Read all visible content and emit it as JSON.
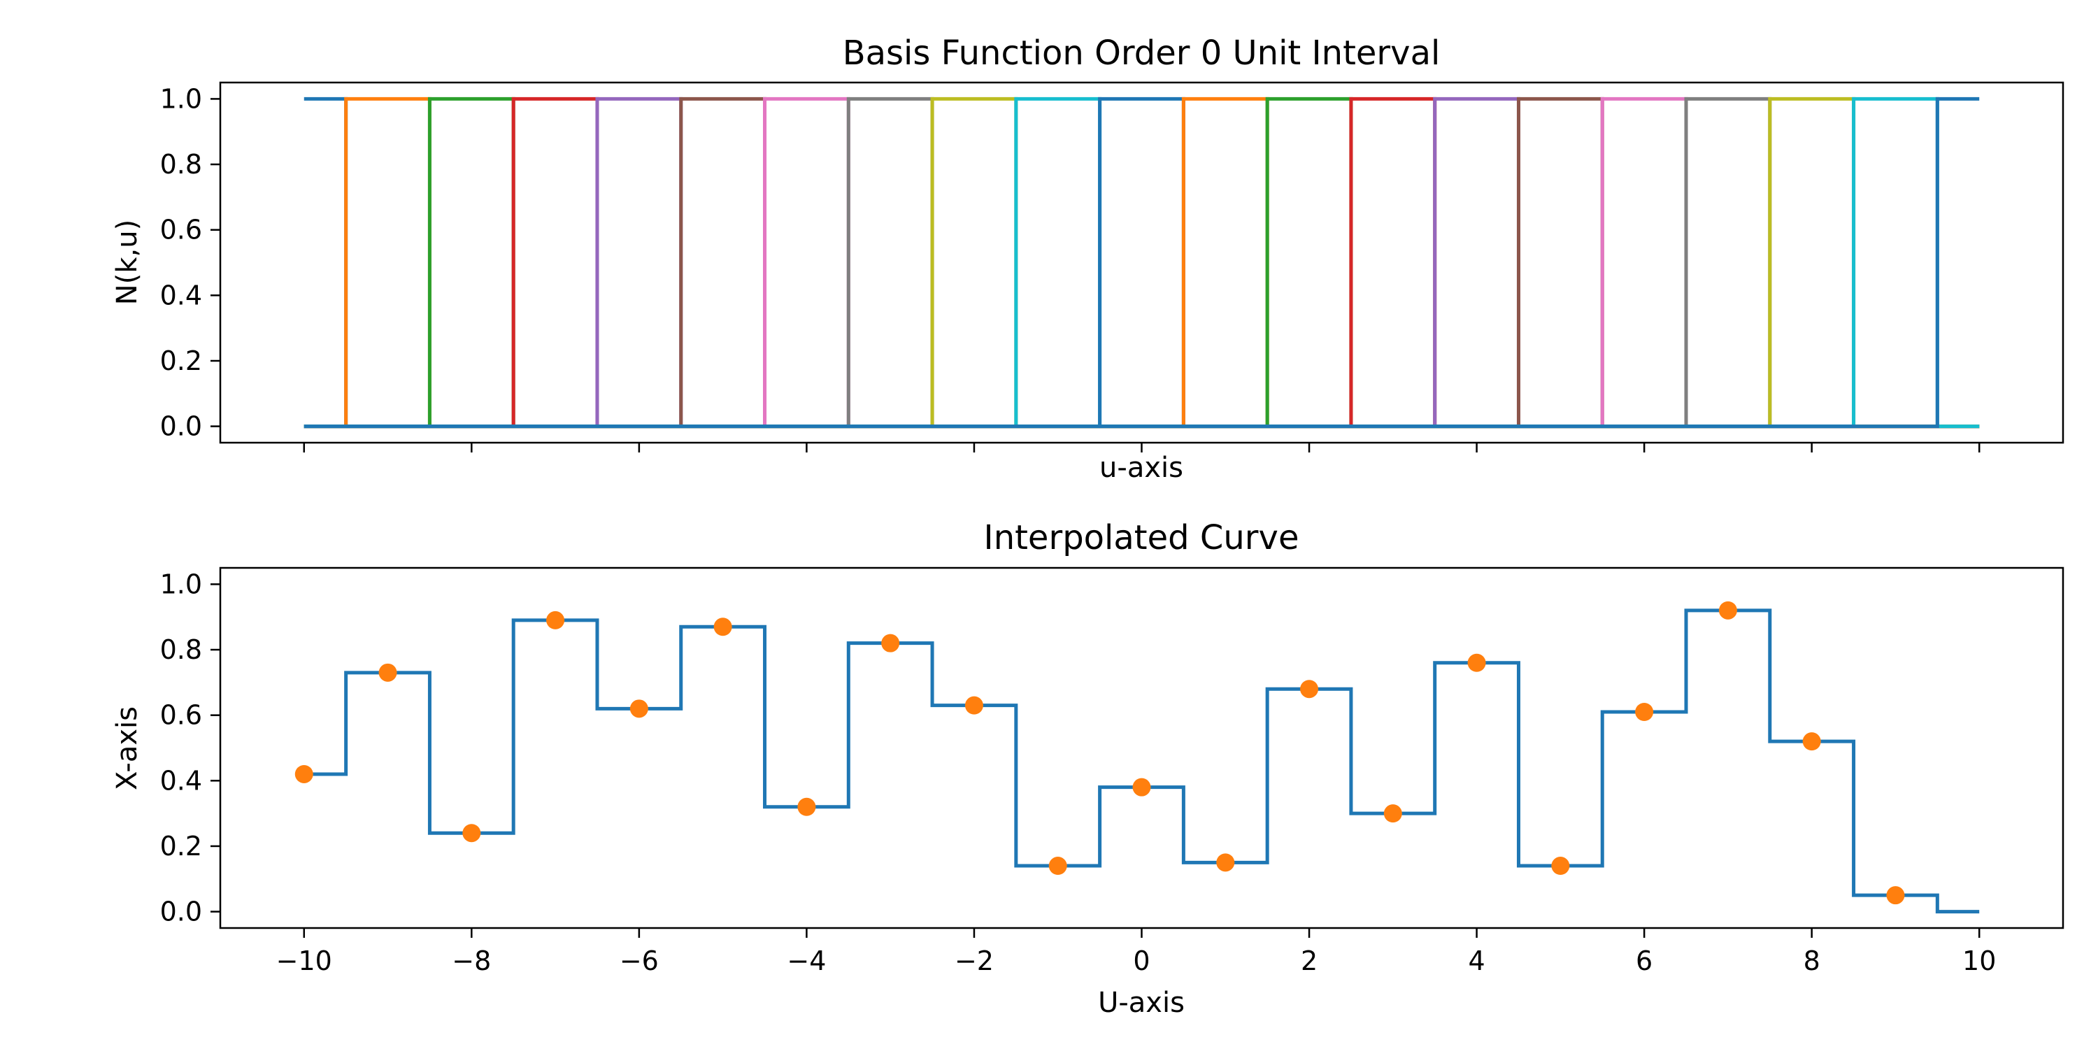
{
  "chart_data": [
    {
      "type": "line",
      "title": "Basis Function Order 0 Unit Interval",
      "xlabel": "u-axis",
      "ylabel": "N(k,u)",
      "xlim": [
        -11,
        11
      ],
      "ylim": [
        -0.05,
        1.05
      ],
      "x_ticks": [
        -10,
        -8,
        -6,
        -4,
        -2,
        0,
        2,
        4,
        6,
        8,
        10
      ],
      "x_ticklabels_shown": false,
      "y_ticks": [
        0.0,
        0.2,
        0.4,
        0.6,
        0.8,
        1.0
      ],
      "y_ticklabels": [
        "0.0",
        "0.2",
        "0.4",
        "0.6",
        "0.8",
        "1.0"
      ],
      "grid": false,
      "legend": "none",
      "domain": [
        -10,
        10
      ],
      "knots": [
        -10,
        -9.5,
        -8.5,
        -7.5,
        -6.5,
        -5.5,
        -4.5,
        -3.5,
        -2.5,
        -1.5,
        -0.5,
        0.5,
        1.5,
        2.5,
        3.5,
        4.5,
        5.5,
        6.5,
        7.5,
        8.5,
        9.5,
        10
      ],
      "series_colors": [
        "#1f77b4",
        "#ff7f0e",
        "#2ca02c",
        "#d62728",
        "#9467bd",
        "#8c564b",
        "#e377c2",
        "#7f7f7f",
        "#bcbd22",
        "#17becf"
      ]
    },
    {
      "type": "line",
      "title": "Interpolated Curve",
      "xlabel": "U-axis",
      "ylabel": "X-axis",
      "xlim": [
        -11,
        11
      ],
      "ylim": [
        -0.05,
        1.05
      ],
      "x_ticks": [
        -10,
        -8,
        -6,
        -4,
        -2,
        0,
        2,
        4,
        6,
        8,
        10
      ],
      "x_ticklabels": [
        "−10",
        "−8",
        "−6",
        "−4",
        "−2",
        "0",
        "2",
        "4",
        "6",
        "8",
        "10"
      ],
      "y_ticks": [
        0.0,
        0.2,
        0.4,
        0.6,
        0.8,
        1.0
      ],
      "y_ticklabels": [
        "0.0",
        "0.2",
        "0.4",
        "0.6",
        "0.8",
        "1.0"
      ],
      "grid": false,
      "legend": "none",
      "curve_color": "#1f77b4",
      "points_color": "#ff7f0e",
      "points_x": [
        -10,
        -9,
        -8,
        -7,
        -6,
        -5,
        -4,
        -3,
        -2,
        -1,
        0,
        1,
        2,
        3,
        4,
        5,
        6,
        7,
        8,
        9
      ],
      "points_y": [
        0.42,
        0.73,
        0.24,
        0.89,
        0.62,
        0.87,
        0.32,
        0.82,
        0.63,
        0.14,
        0.38,
        0.15,
        0.68,
        0.3,
        0.76,
        0.14,
        0.61,
        0.92,
        0.52,
        0.05
      ],
      "curve_end": {
        "x": 10,
        "y": 0.0
      }
    }
  ]
}
